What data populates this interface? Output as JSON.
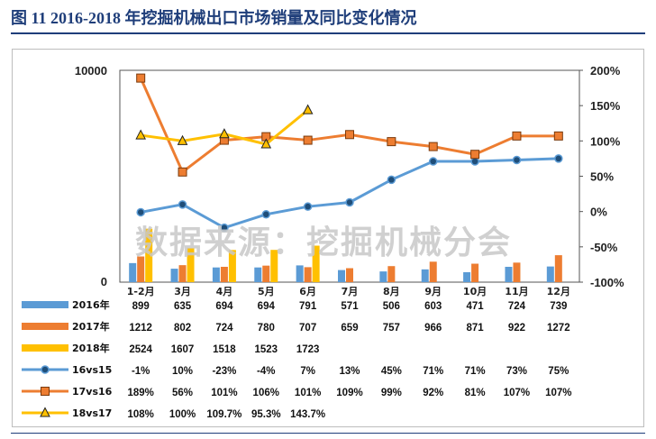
{
  "figure": {
    "title": "图 11    2016-2018 年挖掘机械出口市场销量及同比变化情况",
    "watermark": "数据来源：挖掘机械分会"
  },
  "colors": {
    "title": "#1f3e7a",
    "s2016": "#5b9bd5",
    "s2017": "#ed7d31",
    "s2018": "#ffc000",
    "yoy16": "#5b9bd5",
    "yoy17": "#ed7d31",
    "yoy18": "#ffc000"
  },
  "chart_data": {
    "type": "bar",
    "categories": [
      "1-2月",
      "3月",
      "4月",
      "5月",
      "6月",
      "7月",
      "8月",
      "9月",
      "10月",
      "11月",
      "12月"
    ],
    "y_left": {
      "min": 0,
      "max": 10000,
      "ticks": [
        "0",
        "10000"
      ]
    },
    "y_right": {
      "min": -100,
      "max": 200,
      "step": 50,
      "ticks": [
        "-100%",
        "-50%",
        "0%",
        "50%",
        "100%",
        "150%",
        "200%"
      ]
    },
    "grid": false,
    "legend": "table-below",
    "bar_series": [
      {
        "name": "2016年",
        "values": [
          899,
          635,
          694,
          694,
          791,
          571,
          506,
          603,
          471,
          724,
          739
        ],
        "labels": [
          "899",
          "635",
          "694",
          "694",
          "791",
          "571",
          "506",
          "603",
          "471",
          "724",
          "739"
        ]
      },
      {
        "name": "2017年",
        "values": [
          1212,
          802,
          724,
          780,
          707,
          659,
          757,
          966,
          871,
          922,
          1272
        ],
        "labels": [
          "1212",
          "802",
          "724",
          "780",
          "707",
          "659",
          "757",
          "966",
          "871",
          "922",
          "1272"
        ]
      },
      {
        "name": "2018年",
        "values": [
          2524,
          1607,
          1518,
          1523,
          1723
        ],
        "labels": [
          "2524",
          "1607",
          "1518",
          "1523",
          "1723"
        ]
      }
    ],
    "line_series": [
      {
        "name": "16vs15",
        "marker": "circle",
        "values": [
          -1,
          10,
          -23,
          -4,
          7,
          13,
          45,
          71,
          71,
          73,
          75
        ],
        "labels": [
          "-1%",
          "10%",
          "-23%",
          "-4%",
          "7%",
          "13%",
          "45%",
          "71%",
          "71%",
          "73%",
          "75%"
        ]
      },
      {
        "name": "17vs16",
        "marker": "square",
        "values": [
          189,
          56,
          101,
          106,
          101,
          109,
          99,
          92,
          81,
          107,
          107
        ],
        "labels": [
          "189%",
          "56%",
          "101%",
          "106%",
          "101%",
          "109%",
          "99%",
          "92%",
          "81%",
          "107%",
          "107%"
        ]
      },
      {
        "name": "18vs17",
        "marker": "triangle",
        "values": [
          108,
          100,
          109.7,
          95.3,
          143.7
        ],
        "labels": [
          "108%",
          "100%",
          "109.7%",
          "95.3%",
          "143.7%"
        ]
      }
    ]
  }
}
